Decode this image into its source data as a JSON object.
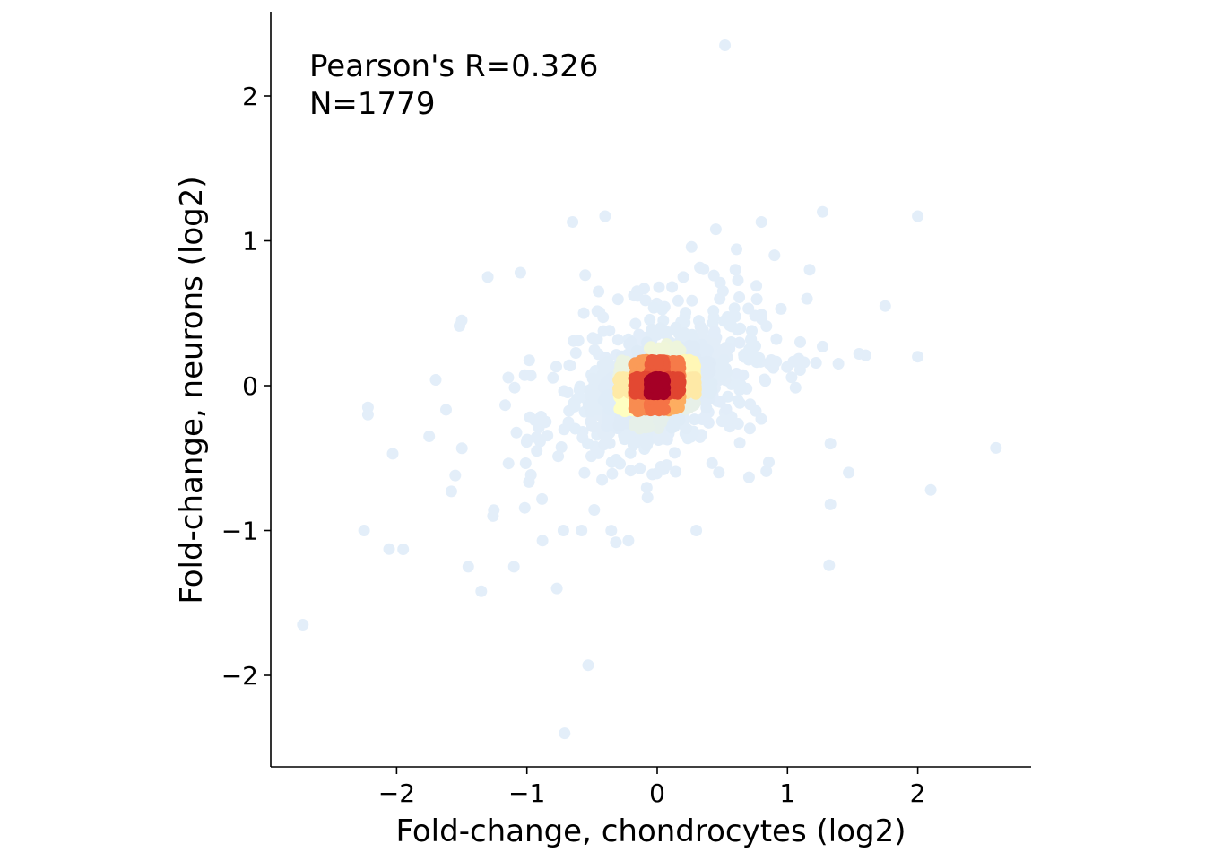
{
  "chart_data": {
    "type": "scatter",
    "title": "",
    "xlabel": "Fold-change, chondrocytes (log2)",
    "ylabel": "Fold-change, neurons (log2)",
    "xlim": [
      -2.95,
      2.85
    ],
    "ylim": [
      -2.6,
      2.6
    ],
    "xticks": [
      -2,
      -1,
      0,
      1,
      2
    ],
    "yticks": [
      -2,
      -1,
      0,
      1,
      2
    ],
    "xtick_labels": [
      "−2",
      "−1",
      "0",
      "1",
      "2"
    ],
    "ytick_labels": [
      "−2",
      "−1",
      "0",
      "1",
      "2"
    ],
    "grid": false,
    "annotations": [
      "Pearson's R=0.326",
      "N=1779"
    ],
    "density_colormap": [
      "#e3eef9",
      "#ffffbf",
      "#fdae61",
      "#f46d43",
      "#d73027",
      "#a50026"
    ],
    "point_count": 1779,
    "points_sample": [
      [
        0.52,
        2.35
      ],
      [
        -2.72,
        -1.65
      ],
      [
        -0.71,
        -2.4
      ],
      [
        -0.53,
        -1.93
      ],
      [
        2.6,
        -0.43
      ],
      [
        2.0,
        1.17
      ],
      [
        1.27,
        1.2
      ],
      [
        -0.4,
        1.17
      ],
      [
        -0.65,
        1.13
      ],
      [
        0.8,
        1.13
      ],
      [
        1.75,
        0.55
      ],
      [
        2.1,
        -0.72
      ],
      [
        2.0,
        0.2
      ],
      [
        1.55,
        0.22
      ],
      [
        1.6,
        0.21
      ],
      [
        -2.22,
        -0.15
      ],
      [
        -2.22,
        -0.2
      ],
      [
        -2.25,
        -1.0
      ],
      [
        -1.95,
        -1.13
      ],
      [
        -2.03,
        -0.47
      ],
      [
        -1.45,
        -1.25
      ],
      [
        -1.35,
        -1.42
      ],
      [
        -1.1,
        -1.25
      ],
      [
        -0.77,
        -1.4
      ],
      [
        -0.88,
        -1.07
      ],
      [
        -0.58,
        -1.0
      ],
      [
        -0.72,
        -1.0
      ],
      [
        0.3,
        -1.0
      ],
      [
        1.32,
        -1.24
      ],
      [
        1.33,
        -0.82
      ],
      [
        1.47,
        -0.6
      ],
      [
        1.33,
        -0.4
      ],
      [
        1.27,
        0.27
      ],
      [
        1.15,
        0.6
      ],
      [
        1.17,
        0.8
      ],
      [
        -1.3,
        0.75
      ],
      [
        -1.05,
        0.78
      ],
      [
        -1.5,
        0.45
      ],
      [
        -1.7,
        0.04
      ],
      [
        -1.75,
        -0.35
      ],
      [
        -1.55,
        -0.62
      ],
      [
        -1.58,
        -0.73
      ],
      [
        -1.26,
        -0.9
      ],
      [
        -0.97,
        0.07
      ],
      [
        0.95,
        0.53
      ],
      [
        0.2,
        0.75
      ],
      [
        0.45,
        1.08
      ],
      [
        -0.15,
        0.62
      ],
      [
        -0.45,
        0.65
      ],
      [
        -0.1,
        0.67
      ],
      [
        0.6,
        0.8
      ],
      [
        0.9,
        0.9
      ]
    ]
  }
}
